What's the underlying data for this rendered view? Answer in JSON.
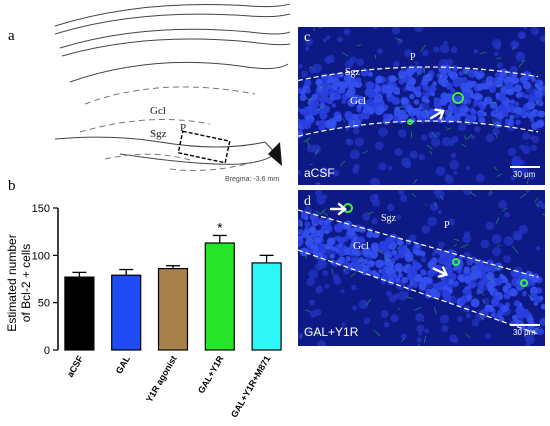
{
  "panels": {
    "a": {
      "letter": "a",
      "labels": {
        "gcl": "Gcl",
        "sgz": "Sgz",
        "p": "P"
      },
      "bregma": "Bregma: -3.6 mm"
    },
    "b": {
      "letter": "b"
    },
    "c": {
      "letter": "c",
      "labels": {
        "p": "P",
        "sgz": "Sgz",
        "gcl": "Gcl"
      },
      "condition": "aCSF",
      "scale": "30 μm"
    },
    "d": {
      "letter": "d",
      "labels": {
        "sgz": "Sgz",
        "p": "P",
        "gcl": "Gcl"
      },
      "condition": "GAL+Y1R",
      "scale": "30 μm"
    }
  },
  "chart_data": {
    "type": "bar",
    "ylabel": "Estimated number of Bcl-2 + cells",
    "ylabel_lines": [
      "Estimated number",
      "of Bcl-2 + cells"
    ],
    "ylim": [
      0,
      150
    ],
    "yticks": [
      "0",
      "50",
      "100",
      "150"
    ],
    "categories": [
      "aCSF",
      "GAL",
      "Y1R agonist",
      "GAL+Y1R",
      "GAL+Y1R+M871"
    ],
    "values": [
      77,
      79,
      86,
      113,
      92
    ],
    "errors": [
      5,
      6,
      3,
      8,
      8
    ],
    "colors": [
      "#000000",
      "#1f4cf5",
      "#a8804a",
      "#28e428",
      "#2ff7f7"
    ],
    "significance": [
      "",
      "",
      "",
      "*",
      ""
    ]
  },
  "colors": {
    "micro_bg": "#0d1a86",
    "nuclei": "#2a3fe0",
    "green": "#3cf03c"
  }
}
